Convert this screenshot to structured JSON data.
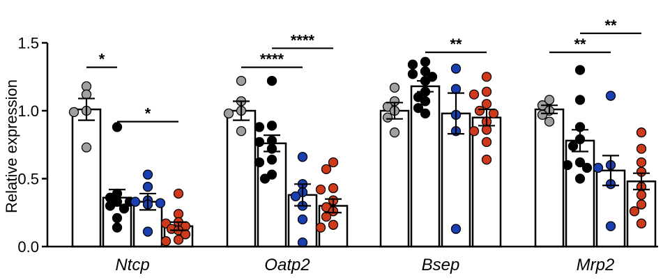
{
  "chart_data": {
    "type": "bar",
    "ylabel": "Relative expression",
    "ylim": [
      0,
      1.5
    ],
    "yticks": [
      "0.0",
      "0.5",
      "1.0",
      "1.5"
    ],
    "categories": [
      "Ntcp",
      "Oatp2",
      "Bsep",
      "Mrp2"
    ],
    "series_colors": [
      "#a0a0a0",
      "#000000",
      "#1a3fb0",
      "#d03a1c"
    ],
    "groups": [
      {
        "category": "Ntcp",
        "bars": [
          {
            "mean": 1.01,
            "sem": 0.08,
            "points": [
              1.18,
              1.12,
              1.0,
              0.99,
              0.73
            ]
          },
          {
            "mean": 0.36,
            "sem": 0.06,
            "points": [
              0.88,
              0.39,
              0.36,
              0.33,
              0.33,
              0.3,
              0.28,
              0.21,
              0.14
            ]
          },
          {
            "mean": 0.33,
            "sem": 0.06,
            "points": [
              0.53,
              0.44,
              0.34,
              0.33,
              0.32,
              0.31,
              0.11
            ]
          },
          {
            "mean": 0.15,
            "sem": 0.03,
            "points": [
              0.39,
              0.24,
              0.18,
              0.17,
              0.15,
              0.13,
              0.12,
              0.09,
              0.05,
              0.04
            ]
          }
        ],
        "significance": [
          {
            "label": "*",
            "from": 0,
            "to": 1,
            "y": 1.32
          },
          {
            "label": "*",
            "from": 1,
            "to": 3,
            "y": 0.92
          }
        ]
      },
      {
        "category": "Oatp2",
        "bars": [
          {
            "mean": 1.0,
            "sem": 0.07,
            "points": [
              1.22,
              1.07,
              1.0,
              0.98,
              0.85
            ]
          },
          {
            "mean": 0.76,
            "sem": 0.06,
            "points": [
              1.22,
              0.89,
              0.88,
              0.78,
              0.77,
              0.72,
              0.64,
              0.62,
              0.53,
              0.5
            ]
          },
          {
            "mean": 0.38,
            "sem": 0.08,
            "points": [
              0.66,
              0.46,
              0.4,
              0.37,
              0.3,
              0.2,
              0.03
            ]
          },
          {
            "mean": 0.3,
            "sem": 0.05,
            "points": [
              0.62,
              0.57,
              0.43,
              0.42,
              0.34,
              0.29,
              0.26,
              0.22,
              0.16,
              0.14
            ]
          }
        ],
        "significance": [
          {
            "label": "****",
            "from": 0,
            "to": 2,
            "y": 1.32
          },
          {
            "label": "****",
            "from": 1,
            "to": 3,
            "y": 1.46
          }
        ]
      },
      {
        "category": "Bsep",
        "bars": [
          {
            "mean": 1.0,
            "sem": 0.06,
            "points": [
              1.17,
              1.07,
              1.03,
              1.0,
              0.95,
              0.84
            ]
          },
          {
            "mean": 1.18,
            "sem": 0.04,
            "points": [
              1.36,
              1.34,
              1.29,
              1.27,
              1.25,
              1.22,
              1.14,
              1.1,
              1.07,
              1.02,
              0.98
            ]
          },
          {
            "mean": 0.98,
            "sem": 0.15,
            "points": [
              1.31,
              1.16,
              0.97,
              0.85,
              0.13
            ]
          },
          {
            "mean": 0.95,
            "sem": 0.06,
            "points": [
              1.25,
              1.14,
              1.12,
              1.05,
              1.0,
              0.98,
              0.92,
              0.86,
              0.85,
              0.77,
              0.64
            ]
          }
        ],
        "significance": [
          {
            "label": "**",
            "from": 1,
            "to": 3,
            "y": 1.43
          }
        ]
      },
      {
        "category": "Mrp2",
        "bars": [
          {
            "mean": 1.01,
            "sem": 0.03,
            "points": [
              1.08,
              1.04,
              1.0,
              0.97,
              0.92
            ]
          },
          {
            "mean": 0.78,
            "sem": 0.08,
            "points": [
              1.3,
              1.08,
              0.88,
              0.79,
              0.74,
              0.62,
              0.6,
              0.58,
              0.5
            ]
          },
          {
            "mean": 0.56,
            "sem": 0.11,
            "points": [
              1.11,
              0.6,
              0.58,
              0.46,
              0.15
            ]
          },
          {
            "mean": 0.48,
            "sem": 0.06,
            "points": [
              0.84,
              0.72,
              0.62,
              0.55,
              0.44,
              0.38,
              0.31,
              0.26,
              0.17
            ]
          }
        ],
        "significance": [
          {
            "label": "**",
            "from": 0,
            "to": 2,
            "y": 1.43
          },
          {
            "label": "**",
            "from": 1,
            "to": 3,
            "y": 1.57
          }
        ]
      }
    ]
  }
}
